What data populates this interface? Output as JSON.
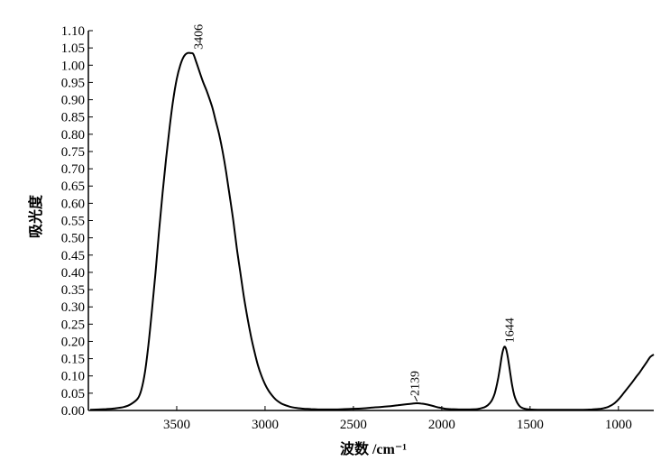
{
  "chart_data": {
    "type": "line",
    "xlabel": "波数 /cm⁻¹",
    "ylabel": "吸光度",
    "x_reversed": true,
    "xlim": [
      4000,
      800
    ],
    "ylim": [
      0,
      1.1
    ],
    "x_ticks": [
      3500,
      3000,
      2500,
      2000,
      1500,
      1000
    ],
    "x_tick_labels": [
      "3500",
      "3000",
      "2500",
      "2000",
      "1500",
      "1000"
    ],
    "y_ticks": [
      0.0,
      0.05,
      0.1,
      0.15,
      0.2,
      0.25,
      0.3,
      0.35,
      0.4,
      0.45,
      0.5,
      0.55,
      0.6,
      0.65,
      0.7,
      0.75,
      0.8,
      0.85,
      0.9,
      0.95,
      1.0,
      1.05,
      1.1
    ],
    "y_tick_labels": [
      "0.00",
      "0.05",
      "0.10",
      "0.15",
      "0.20",
      "0.25",
      "0.30",
      "0.35",
      "0.40",
      "0.45",
      "0.50",
      "0.55",
      "0.60",
      "0.65",
      "0.70",
      "0.75",
      "0.80",
      "0.85",
      "0.90",
      "0.95",
      "1.00",
      "1.05",
      "1.10"
    ],
    "grid": false,
    "series": [
      {
        "x": [
          3990,
          3900,
          3850,
          3800,
          3760,
          3720,
          3700,
          3680,
          3660,
          3640,
          3620,
          3600,
          3580,
          3560,
          3540,
          3520,
          3500,
          3480,
          3460,
          3440,
          3420,
          3406,
          3390,
          3370,
          3350,
          3330,
          3300,
          3280,
          3260,
          3240,
          3220,
          3200,
          3180,
          3160,
          3140,
          3120,
          3100,
          3080,
          3060,
          3040,
          3020,
          3000,
          2980,
          2960,
          2940,
          2920,
          2900,
          2860,
          2820,
          2780,
          2740,
          2700,
          2650,
          2600,
          2550,
          2500,
          2450,
          2400,
          2350,
          2300,
          2250,
          2200,
          2180,
          2160,
          2139,
          2120,
          2100,
          2080,
          2050,
          2020,
          2000,
          1980,
          1950,
          1900,
          1850,
          1800,
          1780,
          1760,
          1740,
          1720,
          1710,
          1700,
          1690,
          1680,
          1670,
          1660,
          1650,
          1644,
          1638,
          1630,
          1620,
          1610,
          1600,
          1590,
          1580,
          1570,
          1560,
          1550,
          1530,
          1500,
          1450,
          1400,
          1350,
          1300,
          1250,
          1200,
          1150,
          1100,
          1080,
          1060,
          1040,
          1020,
          1000,
          980,
          960,
          940,
          920,
          900,
          880,
          860,
          840,
          820,
          800
        ],
        "y": [
          0.002,
          0.004,
          0.006,
          0.01,
          0.018,
          0.035,
          0.06,
          0.11,
          0.19,
          0.29,
          0.4,
          0.52,
          0.63,
          0.73,
          0.82,
          0.9,
          0.96,
          1.0,
          1.025,
          1.035,
          1.035,
          1.032,
          1.01,
          0.98,
          0.95,
          0.925,
          0.88,
          0.84,
          0.8,
          0.75,
          0.69,
          0.62,
          0.55,
          0.47,
          0.4,
          0.33,
          0.27,
          0.215,
          0.17,
          0.13,
          0.1,
          0.076,
          0.057,
          0.043,
          0.032,
          0.024,
          0.018,
          0.011,
          0.007,
          0.005,
          0.004,
          0.003,
          0.003,
          0.003,
          0.004,
          0.005,
          0.006,
          0.008,
          0.01,
          0.012,
          0.015,
          0.018,
          0.019,
          0.02,
          0.021,
          0.02,
          0.019,
          0.017,
          0.013,
          0.009,
          0.007,
          0.005,
          0.004,
          0.003,
          0.003,
          0.004,
          0.006,
          0.009,
          0.015,
          0.026,
          0.036,
          0.05,
          0.07,
          0.095,
          0.125,
          0.158,
          0.18,
          0.185,
          0.181,
          0.165,
          0.135,
          0.1,
          0.068,
          0.045,
          0.03,
          0.02,
          0.013,
          0.009,
          0.005,
          0.003,
          0.002,
          0.002,
          0.002,
          0.002,
          0.002,
          0.002,
          0.003,
          0.005,
          0.007,
          0.01,
          0.015,
          0.022,
          0.032,
          0.044,
          0.057,
          0.07,
          0.083,
          0.097,
          0.11,
          0.125,
          0.14,
          0.155,
          0.162
        ]
      }
    ],
    "annotations": [
      {
        "text": "3406",
        "x": 3406,
        "y": 1.035
      },
      {
        "text": "2139",
        "x": 2139,
        "y": 0.021
      },
      {
        "text": "1644",
        "x": 1644,
        "y": 0.185
      }
    ]
  }
}
